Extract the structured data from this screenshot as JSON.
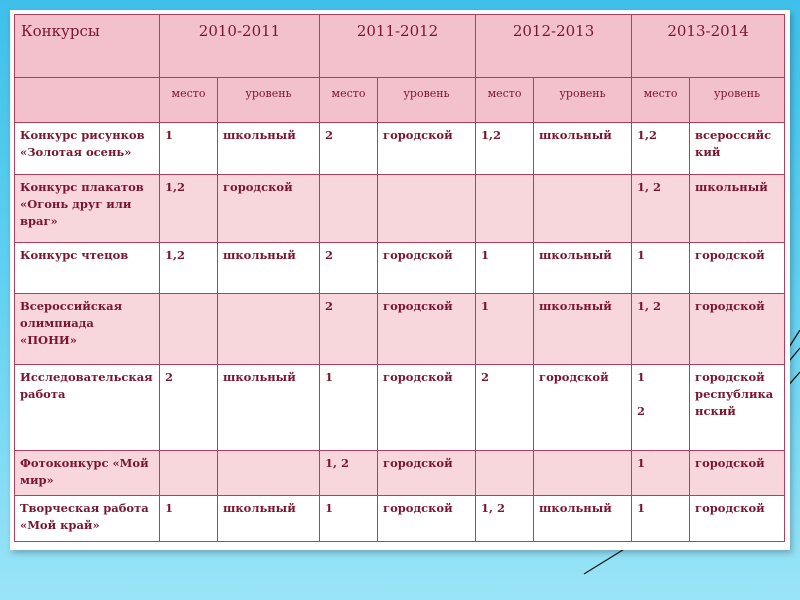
{
  "table": {
    "header": {
      "first": "Конкурсы",
      "years": [
        "2010-2011",
        "2011-2012",
        "2012-2013",
        "2013-2014"
      ]
    },
    "subheader": {
      "place": "место",
      "level": "уровень"
    },
    "rows": [
      {
        "name": "Конкурс рисунков «Золотая осень»",
        "cells": [
          "1",
          "школьный",
          "2",
          "городской",
          "1,2",
          "школьный",
          "1,2",
          "всероссийский"
        ]
      },
      {
        "name": "Конкурс плакатов «Огонь друг или враг»",
        "cells": [
          "1,2",
          "городской",
          "",
          "",
          "",
          "",
          "1,  2",
          "школьный"
        ]
      },
      {
        "name": "Конкурс чтецов",
        "cells": [
          "1,2",
          "школьный",
          "2",
          "городской",
          "1",
          "школьный",
          "1",
          "городской"
        ]
      },
      {
        "name": "Всероссийская олимпиада «ПОНИ»",
        "cells": [
          "",
          "",
          "2",
          "городской",
          "1",
          "школьный",
          "1, 2",
          "городской"
        ]
      },
      {
        "name": "Исследовательская работа",
        "cells": [
          "2",
          "школьный",
          "1",
          "городской",
          "2",
          "городской",
          "1\n\n2",
          "городской республиканский"
        ]
      },
      {
        "name": "Фотоконкурс «Мой мир»",
        "cells": [
          "",
          "",
          "1, 2",
          "городской",
          "",
          "",
          "1",
          "городской"
        ]
      },
      {
        "name": "Творческая работа «Мой край»",
        "cells": [
          "1",
          "школьный",
          "1",
          "городской",
          "1, 2",
          "школьный",
          "1",
          "городской"
        ]
      }
    ]
  },
  "colors": {
    "background": "#3fc0ea",
    "header_fill": "#f2c1cb",
    "alt_row_fill": "#f7d6dc",
    "text": "#7a1530",
    "border": "#b04060"
  }
}
